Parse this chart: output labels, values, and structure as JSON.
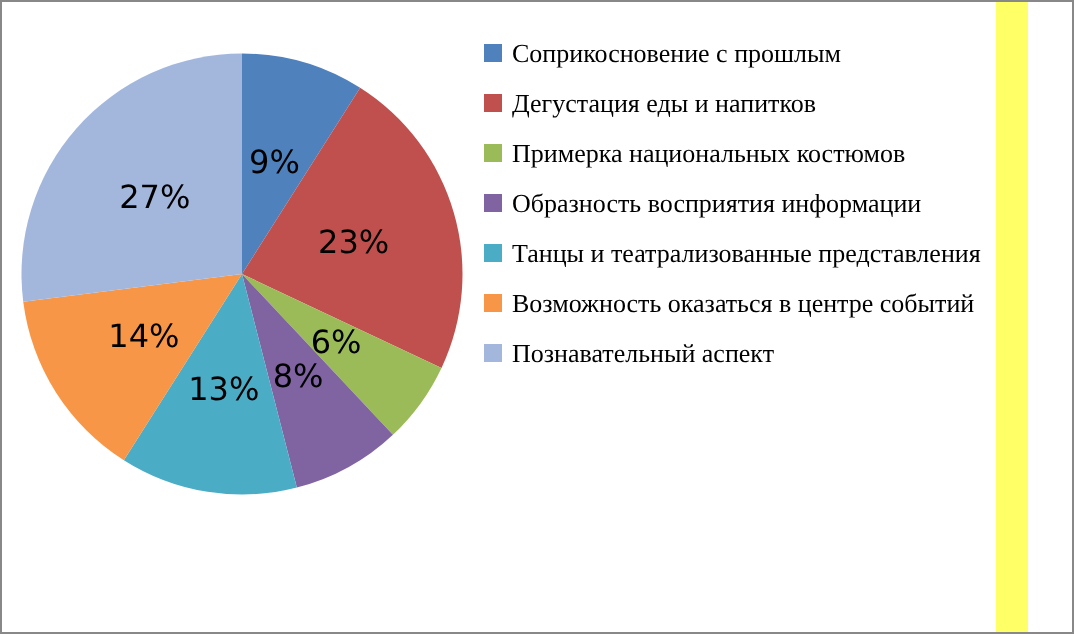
{
  "chart_data": {
    "type": "pie",
    "categories": [
      "Соприкосновение с прошлым",
      "Дегустация еды и напитков",
      "Примерка национальных костюмов",
      "Образность восприятия информации",
      "Танцы и театрализованные представления",
      "Возможность оказаться в центре событий",
      "Познавательный аспект"
    ],
    "values": [
      9,
      23,
      6,
      8,
      13,
      14,
      27
    ],
    "colors": [
      "#4f81bd",
      "#c0504d",
      "#9bbb59",
      "#8064a2",
      "#4bacc6",
      "#f79646",
      "#a3b7dd"
    ],
    "value_labels": [
      "9%",
      "23%",
      "6%",
      "8%",
      "13%",
      "14%",
      "27%"
    ],
    "legend": "right"
  }
}
